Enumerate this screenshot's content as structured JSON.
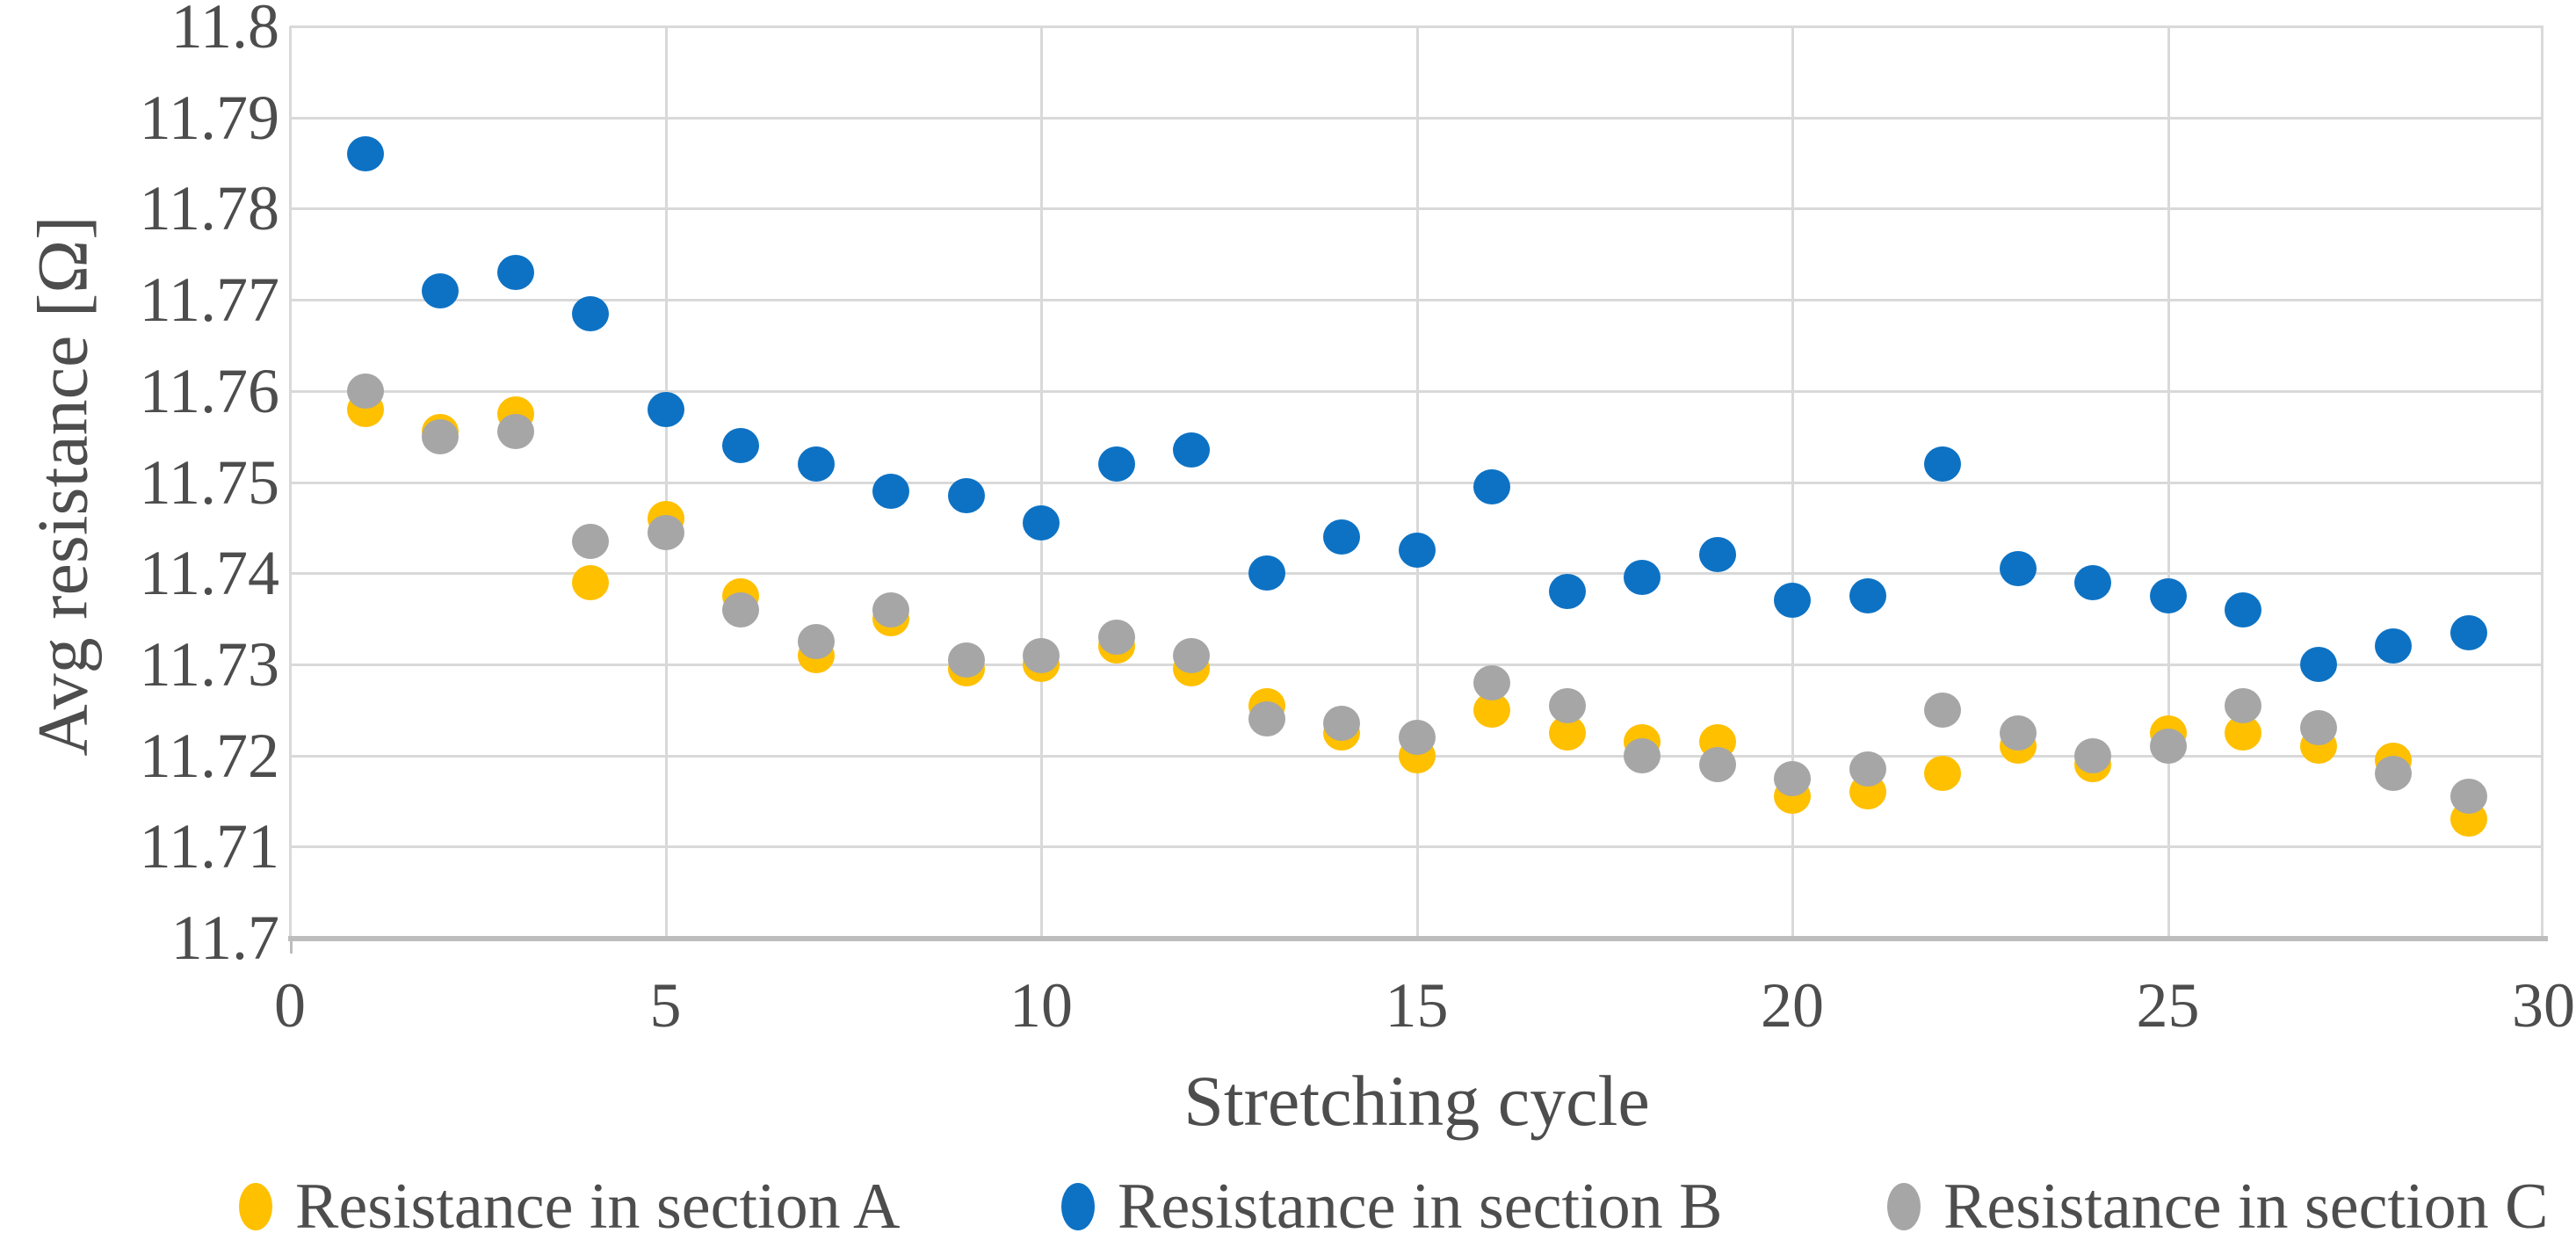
{
  "chart_data": {
    "type": "scatter",
    "title": "",
    "xlabel": "Stretching cycle",
    "ylabel": "Avg resistance [Ω]",
    "xlim": [
      0,
      30
    ],
    "ylim": [
      11.7,
      11.8
    ],
    "grid": true,
    "legend_position": "bottom",
    "x_ticks": [
      {
        "v": 0,
        "label": "0"
      },
      {
        "v": 5,
        "label": "5"
      },
      {
        "v": 10,
        "label": "10"
      },
      {
        "v": 15,
        "label": "15"
      },
      {
        "v": 20,
        "label": "20"
      },
      {
        "v": 25,
        "label": "25"
      },
      {
        "v": 30,
        "label": "30"
      }
    ],
    "y_ticks": [
      {
        "v": 11.7,
        "label": "11.7"
      },
      {
        "v": 11.71,
        "label": "11.71"
      },
      {
        "v": 11.72,
        "label": "11.72"
      },
      {
        "v": 11.73,
        "label": "11.73"
      },
      {
        "v": 11.74,
        "label": "11.74"
      },
      {
        "v": 11.75,
        "label": "11.75"
      },
      {
        "v": 11.76,
        "label": "11.76"
      },
      {
        "v": 11.77,
        "label": "11.77"
      },
      {
        "v": 11.78,
        "label": "11.78"
      },
      {
        "v": 11.79,
        "label": "11.79"
      },
      {
        "v": 11.8,
        "label": "11.8"
      }
    ],
    "x": [
      1,
      2,
      3,
      4,
      5,
      6,
      7,
      8,
      9,
      10,
      11,
      12,
      13,
      14,
      15,
      16,
      17,
      18,
      19,
      20,
      21,
      22,
      23,
      24,
      25,
      26,
      27,
      28,
      29
    ],
    "series": [
      {
        "name": "Resistance in section A",
        "color": "#FFC000",
        "values": [
          11.758,
          11.7555,
          11.7575,
          11.739,
          11.746,
          11.7375,
          11.731,
          11.735,
          11.7295,
          11.73,
          11.732,
          11.7295,
          11.7255,
          11.7225,
          11.72,
          11.725,
          11.7225,
          11.7215,
          11.7215,
          11.7155,
          11.716,
          11.718,
          11.721,
          11.719,
          11.7225,
          11.7225,
          11.721,
          11.7195,
          11.713
        ]
      },
      {
        "name": "Resistance in section B",
        "color": "#0D72C4",
        "values": [
          11.786,
          11.771,
          11.773,
          11.7685,
          11.758,
          11.754,
          11.752,
          11.749,
          11.7485,
          11.7455,
          11.752,
          11.7535,
          11.74,
          11.744,
          11.7425,
          11.7495,
          11.738,
          11.7395,
          11.742,
          11.737,
          11.7375,
          11.752,
          11.7405,
          11.739,
          11.7375,
          11.736,
          11.73,
          11.732,
          11.7335
        ]
      },
      {
        "name": "Resistance in section C",
        "color": "#A6A6A6",
        "values": [
          11.76,
          11.755,
          11.7555,
          11.7435,
          11.7445,
          11.736,
          11.7325,
          11.736,
          11.7305,
          11.731,
          11.733,
          11.731,
          11.724,
          11.7235,
          11.722,
          11.728,
          11.7255,
          11.72,
          11.719,
          11.7175,
          11.7185,
          11.725,
          11.7225,
          11.72,
          11.721,
          11.7255,
          11.723,
          11.718,
          11.7155
        ]
      }
    ],
    "colors": {
      "grid": "#d9d9d9",
      "axis_line": "#bdbdbd",
      "text": "#4d4d4d",
      "background": "#ffffff"
    }
  }
}
